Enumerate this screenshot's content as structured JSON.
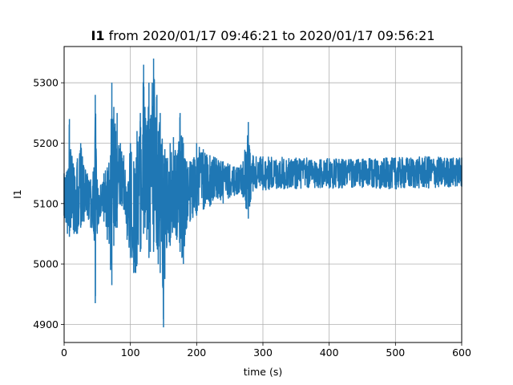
{
  "chart_data": {
    "type": "line",
    "title_bold": "I1",
    "title_rest": " from 2020/01/17 09:46:21 to 2020/01/17 09:56:21",
    "xlabel": "time (s)",
    "ylabel": "I1",
    "xlim": [
      0,
      600
    ],
    "ylim": [
      4870,
      5360
    ],
    "xticks": [
      0,
      100,
      200,
      300,
      400,
      500,
      600
    ],
    "yticks": [
      4900,
      5000,
      5100,
      5200,
      5300
    ],
    "grid": true,
    "legend": "none",
    "series": [
      {
        "color": "#1f77b4",
        "x": [
          0,
          5,
          8,
          10,
          15,
          20,
          25,
          30,
          35,
          40,
          45,
          47,
          50,
          55,
          60,
          65,
          70,
          72,
          75,
          78,
          80,
          85,
          90,
          95,
          100,
          105,
          108,
          110,
          115,
          120,
          122,
          125,
          128,
          130,
          135,
          140,
          142,
          145,
          150,
          152,
          155,
          160,
          165,
          170,
          175,
          180,
          185,
          190,
          200,
          210,
          220,
          230,
          240,
          250,
          260,
          270,
          278,
          280,
          285,
          300,
          350,
          400,
          450,
          500,
          550,
          600
        ],
        "ymin": [
          5080,
          5050,
          5045,
          5060,
          5050,
          5050,
          5060,
          5070,
          5080,
          5060,
          5050,
          4935,
          5050,
          5080,
          5070,
          5040,
          4990,
          4965,
          5030,
          5060,
          5060,
          5100,
          5090,
          5040,
          5010,
          4985,
          4985,
          5000,
          5020,
          5050,
          5060,
          5040,
          5010,
          5020,
          5020,
          5030,
          5000,
          4985,
          4895,
          4975,
          5030,
          5030,
          5060,
          5040,
          5020,
          5000,
          5060,
          5070,
          5080,
          5090,
          5095,
          5110,
          5100,
          5110,
          5115,
          5110,
          5075,
          5095,
          5120,
          5122,
          5124,
          5125,
          5126,
          5124,
          5125,
          5128
        ],
        "ymax": [
          5150,
          5155,
          5240,
          5190,
          5160,
          5175,
          5200,
          5160,
          5150,
          5140,
          5160,
          5280,
          5140,
          5130,
          5150,
          5160,
          5180,
          5300,
          5260,
          5220,
          5250,
          5200,
          5180,
          5120,
          5200,
          5170,
          5150,
          5220,
          5250,
          5330,
          5260,
          5230,
          5300,
          5240,
          5340,
          5280,
          5220,
          5250,
          5180,
          5190,
          5170,
          5200,
          5210,
          5180,
          5250,
          5200,
          5170,
          5170,
          5200,
          5190,
          5180,
          5175,
          5170,
          5165,
          5160,
          5170,
          5235,
          5190,
          5180,
          5178,
          5176,
          5175,
          5174,
          5176,
          5178,
          5176
        ]
      }
    ]
  }
}
